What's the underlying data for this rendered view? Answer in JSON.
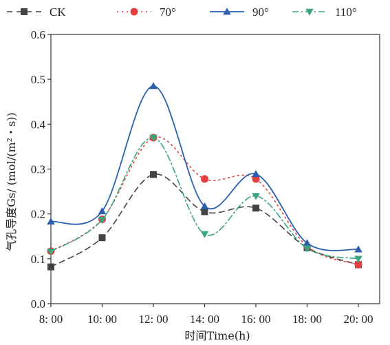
{
  "chart_data": {
    "type": "line",
    "xlabel": "时间Time(h)",
    "ylabel": "气孔导度Gs/ (mol/(m²・s))",
    "categories": [
      "8:00",
      "10:00",
      "12:00",
      "14:00",
      "16:00",
      "18:00",
      "20:00"
    ],
    "ylim": [
      0,
      0.6
    ],
    "yticks": [
      "0.0",
      "0.1",
      "0.2",
      "0.3",
      "0.4",
      "0.5",
      "0.6"
    ],
    "xtick_labels": [
      "8: 00",
      "10: 00",
      "12: 00",
      "14: 00",
      "16: 00",
      "18: 00",
      "20: 00"
    ],
    "grid": false,
    "legend_position": "top",
    "series": [
      {
        "name": "CK",
        "values": [
          0.082,
          0.147,
          0.288,
          0.205,
          0.213,
          0.125,
          0.087
        ],
        "color": "#444444",
        "marker": "square",
        "dash": "8,6"
      },
      {
        "name": "70°",
        "values": [
          0.117,
          0.188,
          0.37,
          0.278,
          0.278,
          0.128,
          0.087
        ],
        "color": "#e3413f",
        "marker": "circle",
        "dash": "2,5"
      },
      {
        "name": "90°",
        "values": [
          0.183,
          0.206,
          0.485,
          0.217,
          0.289,
          0.135,
          0.121
        ],
        "color": "#2a5fb0",
        "marker": "triangle-up",
        "dash": ""
      },
      {
        "name": "110°",
        "values": [
          0.116,
          0.187,
          0.37,
          0.155,
          0.24,
          0.123,
          0.1
        ],
        "color": "#3aa67e",
        "marker": "triangle-down",
        "dash": "9,4,2,4"
      }
    ]
  }
}
